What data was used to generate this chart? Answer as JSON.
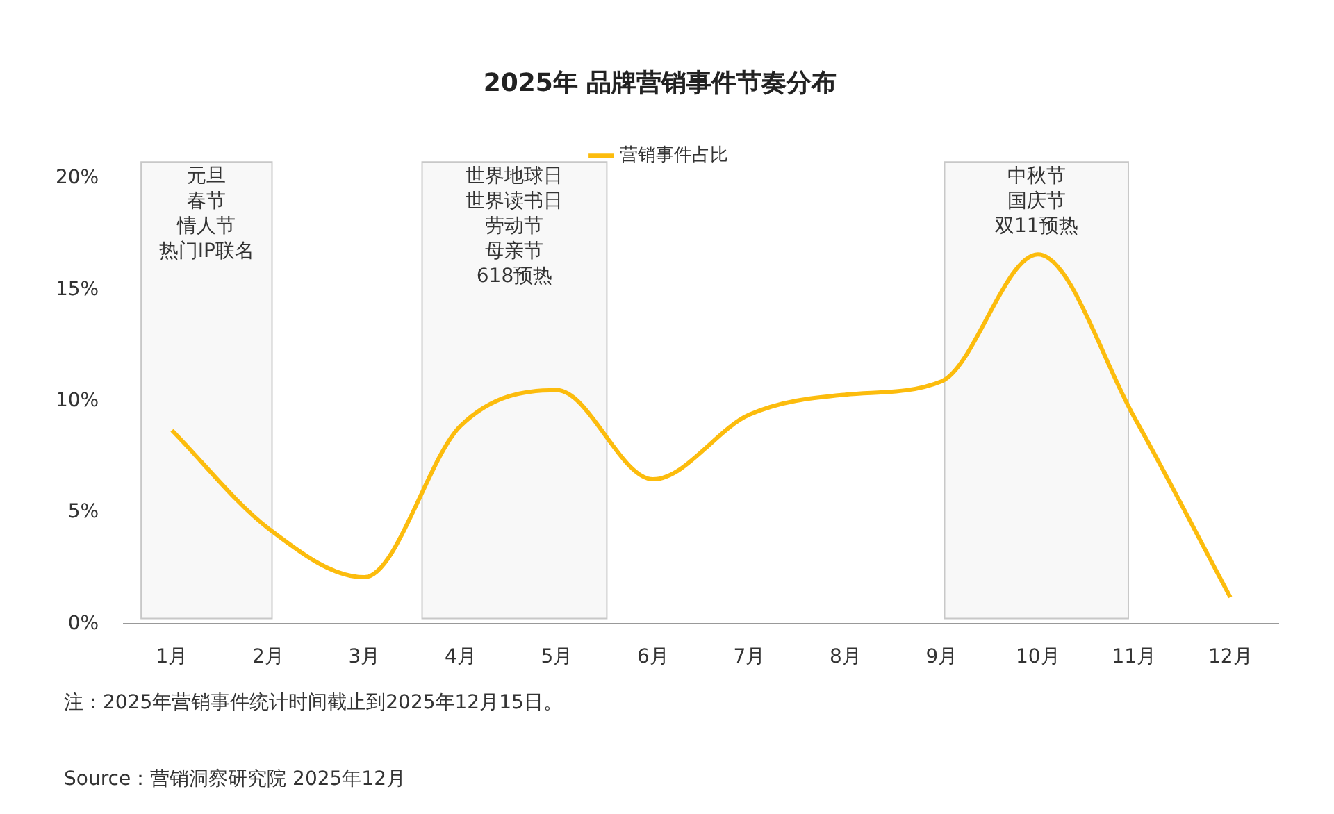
{
  "chart_data": {
    "type": "line",
    "title": "2025年 品牌营销事件节奏分布",
    "x": [
      1,
      2,
      3,
      4,
      5,
      6,
      7,
      8,
      9,
      10,
      11,
      12
    ],
    "xlim": [
      0.5,
      12.5
    ],
    "xticks": [
      {
        "value": 1,
        "label": "1月"
      },
      {
        "value": 2,
        "label": "2月"
      },
      {
        "value": 3,
        "label": "3月"
      },
      {
        "value": 4,
        "label": "4月"
      },
      {
        "value": 5,
        "label": "5月"
      },
      {
        "value": 6,
        "label": "6月"
      },
      {
        "value": 7,
        "label": "7月"
      },
      {
        "value": 8,
        "label": "8月"
      },
      {
        "value": 9,
        "label": "9月"
      },
      {
        "value": 10,
        "label": "10月"
      },
      {
        "value": 11,
        "label": "11月"
      },
      {
        "value": 12,
        "label": "12月"
      }
    ],
    "ylim": [
      0,
      20
    ],
    "yticks": [
      {
        "value": 0,
        "label": "0%"
      },
      {
        "value": 5,
        "label": "5%"
      },
      {
        "value": 10,
        "label": "10%"
      },
      {
        "value": 15,
        "label": "15%"
      },
      {
        "value": 20,
        "label": "20%"
      }
    ],
    "series": [
      {
        "name": "营销事件占比",
        "color": "#fcbc0d",
        "values": [
          8.7,
          4.3,
          2.1,
          8.9,
          10.5,
          6.5,
          9.4,
          10.3,
          10.9,
          16.6,
          9.3,
          1.2
        ]
      }
    ],
    "bands": [
      {
        "axis": "x",
        "from": 0.68,
        "to": 2.04,
        "label": [
          "元旦",
          "春节",
          "情人节",
          "热门IP联名"
        ],
        "color": "#c8c8c8"
      },
      {
        "axis": "x",
        "from": 3.6,
        "to": 5.52,
        "label": [
          "世界地球日",
          "世界读书日",
          "劳动节",
          "母亲节",
          "618预热"
        ],
        "color": "#c8c8c8"
      },
      {
        "axis": "x",
        "from": 9.03,
        "to": 10.94,
        "label": [
          "中秋节",
          "国庆节",
          "双11预热"
        ],
        "color": "#c8c8c8"
      }
    ],
    "legend": "top",
    "grid": false,
    "marker": "none",
    "line_style": "solid",
    "annotations": [
      "注：2025年营销事件统计时间截止到2025年12月15日。",
      "Source：营销洞察研究院 2025年12月"
    ]
  }
}
